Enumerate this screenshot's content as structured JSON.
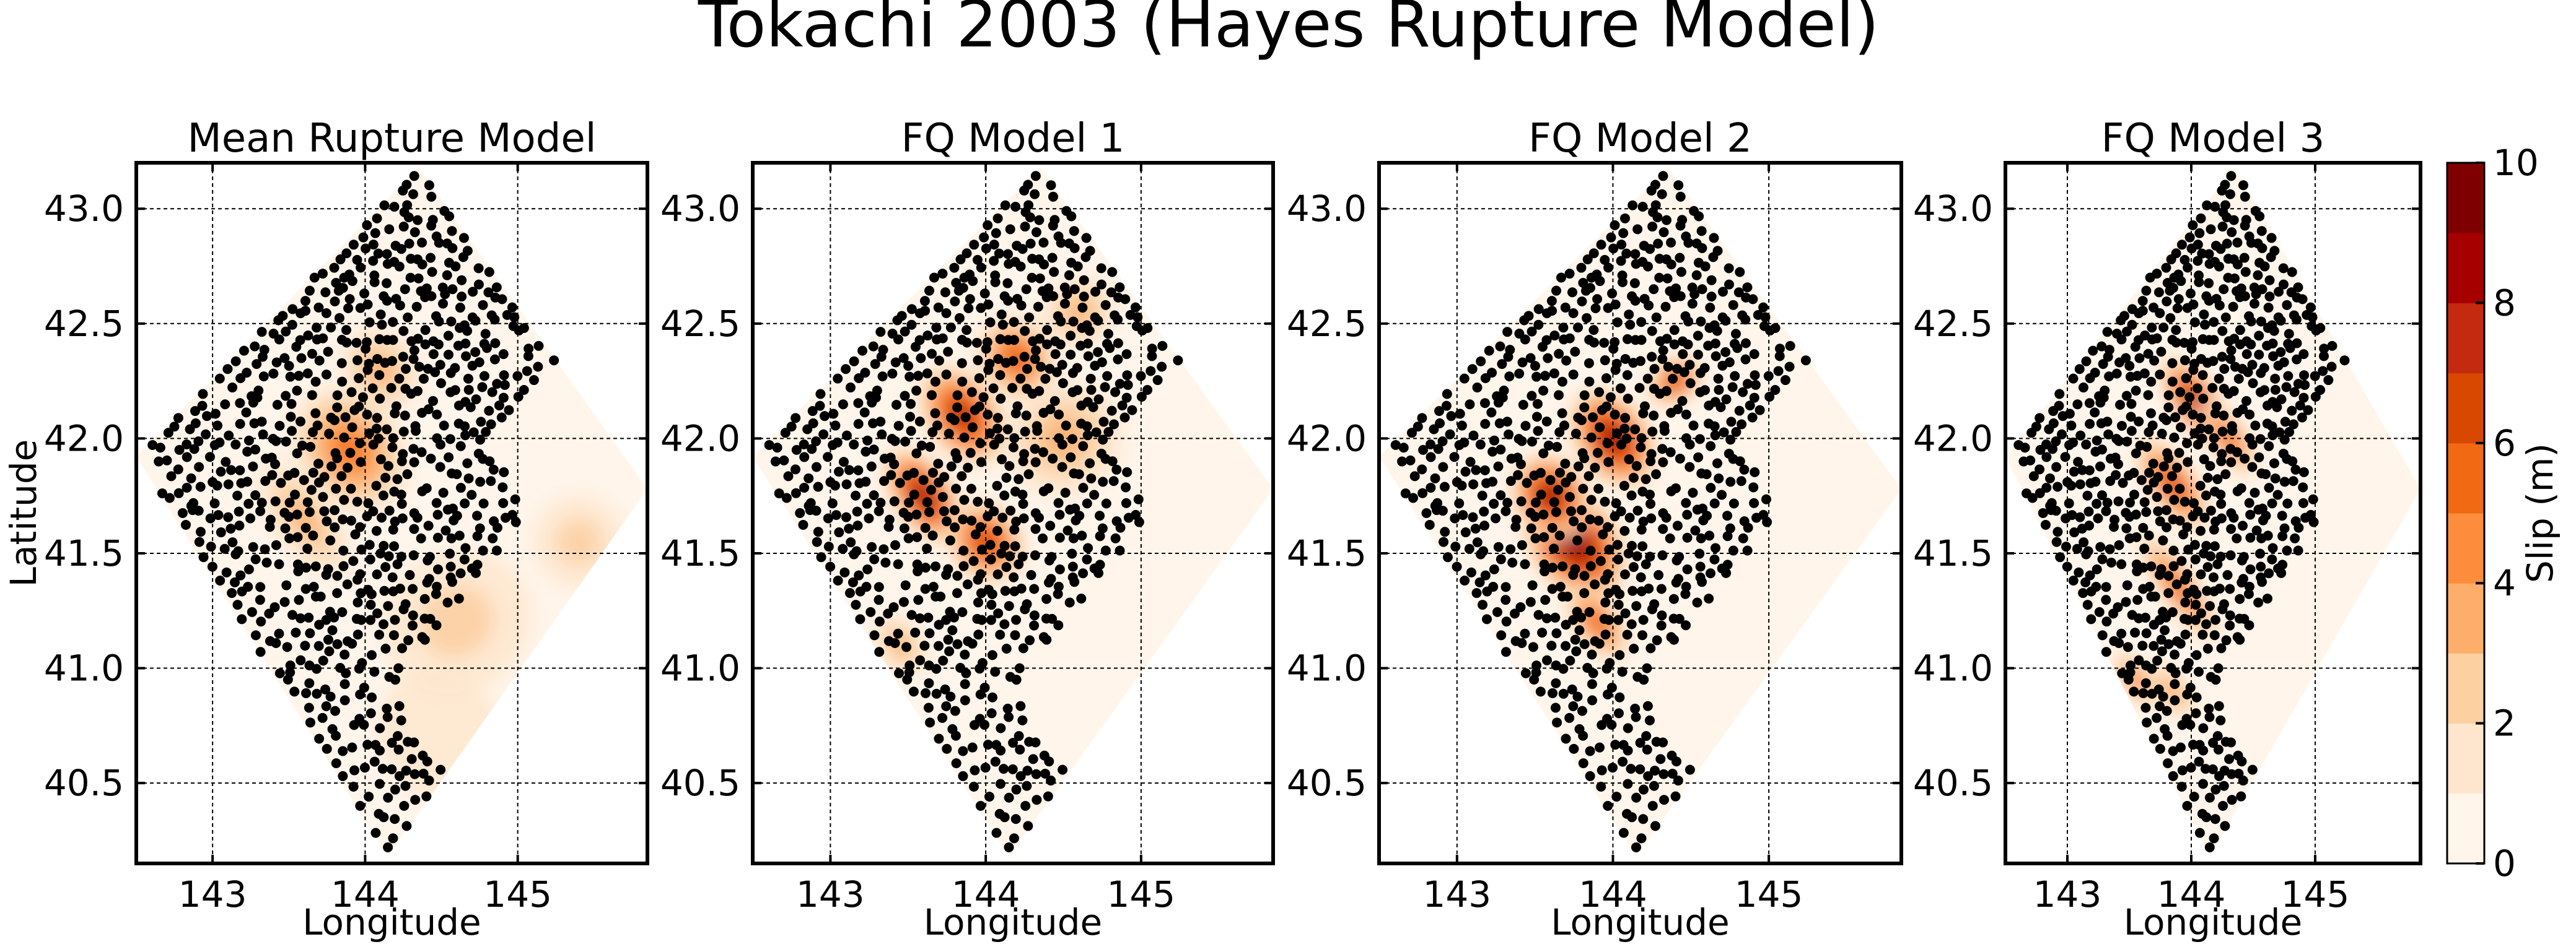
{
  "figure_title": "Tokachi 2003 (Hayes Rupture Model)",
  "colorbar": {
    "label": "Slip (m)",
    "ticks": [
      "0",
      "2",
      "4",
      "6",
      "8",
      "10"
    ],
    "tick_values": [
      0,
      2,
      4,
      6,
      8,
      10
    ],
    "range": [
      0,
      10
    ],
    "levels": 10,
    "colormap": [
      "#fff5eb",
      "#fee6ce",
      "#fdd0a2",
      "#fdae6b",
      "#fd8d3c",
      "#f16913",
      "#d94801",
      "#c32a0f",
      "#a60000",
      "#7f0000"
    ]
  },
  "colors": {
    "points": "#000000",
    "grid": "#000000"
  },
  "chart_data": [
    {
      "type": "contour-scatter",
      "title": "Mean Rupture Model",
      "xlabel": "Longitude",
      "ylabel": "Latitude",
      "xlim": [
        142.5,
        145.85
      ],
      "ylim": [
        40.15,
        43.2
      ],
      "xticks": [
        "143",
        "144",
        "145"
      ],
      "xtick_values": [
        143,
        144,
        145
      ],
      "yticks": [
        "40.5",
        "41.0",
        "41.5",
        "42.0",
        "42.5",
        "43.0"
      ],
      "ytick_values": [
        40.5,
        41.0,
        41.5,
        42.0,
        42.5,
        43.0
      ],
      "grid": true,
      "slip_patches": [
        {
          "lon": 143.9,
          "lat": 41.95,
          "slip": 5.0,
          "rlon": 0.35,
          "rlat": 0.3
        },
        {
          "lon": 144.1,
          "lat": 42.3,
          "slip": 3.0,
          "rlon": 0.25,
          "rlat": 0.2
        },
        {
          "lon": 143.6,
          "lat": 41.65,
          "slip": 3.0,
          "rlon": 0.2,
          "rlat": 0.3
        },
        {
          "lon": 145.4,
          "lat": 41.55,
          "slip": 2.0,
          "rlon": 0.3,
          "rlat": 0.2
        },
        {
          "lon": 144.6,
          "lat": 41.2,
          "slip": 1.5,
          "rlon": 0.5,
          "rlat": 0.3
        },
        {
          "lon": 144.5,
          "lat": 40.7,
          "slip": 1.0,
          "rlon": 0.4,
          "rlat": 0.3
        }
      ]
    },
    {
      "type": "contour-scatter",
      "title": "FQ Model 1",
      "xlabel": "Longitude",
      "ylabel": "",
      "xlim": [
        142.5,
        145.85
      ],
      "ylim": [
        40.15,
        43.2
      ],
      "xticks": [
        "143",
        "144",
        "145"
      ],
      "xtick_values": [
        143,
        144,
        145
      ],
      "yticks": [
        "40.5",
        "41.0",
        "41.5",
        "42.0",
        "42.5",
        "43.0"
      ],
      "ytick_values": [
        40.5,
        41.0,
        41.5,
        42.0,
        42.5,
        43.0
      ],
      "grid": true,
      "slip_patches": [
        {
          "lon": 143.6,
          "lat": 41.75,
          "slip": 8.5,
          "rlon": 0.2,
          "rlat": 0.25
        },
        {
          "lon": 143.85,
          "lat": 42.1,
          "slip": 8.0,
          "rlon": 0.25,
          "rlat": 0.25
        },
        {
          "lon": 144.2,
          "lat": 42.35,
          "slip": 6.0,
          "rlon": 0.25,
          "rlat": 0.2
        },
        {
          "lon": 144.6,
          "lat": 42.55,
          "slip": 3.0,
          "rlon": 0.25,
          "rlat": 0.15
        },
        {
          "lon": 144.0,
          "lat": 41.55,
          "slip": 7.0,
          "rlon": 0.25,
          "rlat": 0.2
        },
        {
          "lon": 143.45,
          "lat": 41.1,
          "slip": 3.0,
          "rlon": 0.15,
          "rlat": 0.15
        },
        {
          "lon": 144.5,
          "lat": 42.0,
          "slip": 2.5,
          "rlon": 0.4,
          "rlat": 0.25
        }
      ]
    },
    {
      "type": "contour-scatter",
      "title": "FQ Model 2",
      "xlabel": "Longitude",
      "ylabel": "",
      "xlim": [
        142.5,
        145.85
      ],
      "ylim": [
        40.15,
        43.2
      ],
      "xticks": [
        "143",
        "144",
        "145"
      ],
      "xtick_values": [
        143,
        144,
        145
      ],
      "yticks": [
        "40.5",
        "41.0",
        "41.5",
        "42.0",
        "42.5",
        "43.0"
      ],
      "ytick_values": [
        40.5,
        41.0,
        41.5,
        42.0,
        42.5,
        43.0
      ],
      "grid": true,
      "slip_patches": [
        {
          "lon": 143.75,
          "lat": 41.55,
          "slip": 9.5,
          "rlon": 0.3,
          "rlat": 0.3
        },
        {
          "lon": 144.0,
          "lat": 42.0,
          "slip": 9.0,
          "rlon": 0.25,
          "rlat": 0.25
        },
        {
          "lon": 143.6,
          "lat": 41.75,
          "slip": 8.5,
          "rlon": 0.25,
          "rlat": 0.2
        },
        {
          "lon": 144.4,
          "lat": 42.25,
          "slip": 7.0,
          "rlon": 0.2,
          "rlat": 0.1
        },
        {
          "lon": 143.9,
          "lat": 41.2,
          "slip": 6.0,
          "rlon": 0.15,
          "rlat": 0.2
        }
      ]
    },
    {
      "type": "contour-scatter",
      "title": "FQ Model 3",
      "xlabel": "Longitude",
      "ylabel": "",
      "xlim": [
        142.5,
        145.85
      ],
      "ylim": [
        40.15,
        43.2
      ],
      "xticks": [
        "143",
        "144",
        "145"
      ],
      "xtick_values": [
        143,
        144,
        145
      ],
      "yticks": [
        "40.5",
        "41.0",
        "41.5",
        "42.0",
        "42.5",
        "43.0"
      ],
      "ytick_values": [
        40.5,
        41.0,
        41.5,
        42.0,
        42.5,
        43.0
      ],
      "grid": true,
      "slip_patches": [
        {
          "lon": 144.05,
          "lat": 42.15,
          "slip": 9.0,
          "rlon": 0.2,
          "rlat": 0.25
        },
        {
          "lon": 143.85,
          "lat": 41.8,
          "slip": 6.5,
          "rlon": 0.2,
          "rlat": 0.25
        },
        {
          "lon": 144.3,
          "lat": 42.0,
          "slip": 5.5,
          "rlon": 0.15,
          "rlat": 0.2
        },
        {
          "lon": 143.9,
          "lat": 41.35,
          "slip": 6.0,
          "rlon": 0.15,
          "rlat": 0.3
        },
        {
          "lon": 143.55,
          "lat": 40.95,
          "slip": 5.0,
          "rlon": 0.12,
          "rlat": 0.15
        },
        {
          "lon": 143.85,
          "lat": 40.9,
          "slip": 4.0,
          "rlon": 0.12,
          "rlat": 0.15
        }
      ]
    }
  ]
}
